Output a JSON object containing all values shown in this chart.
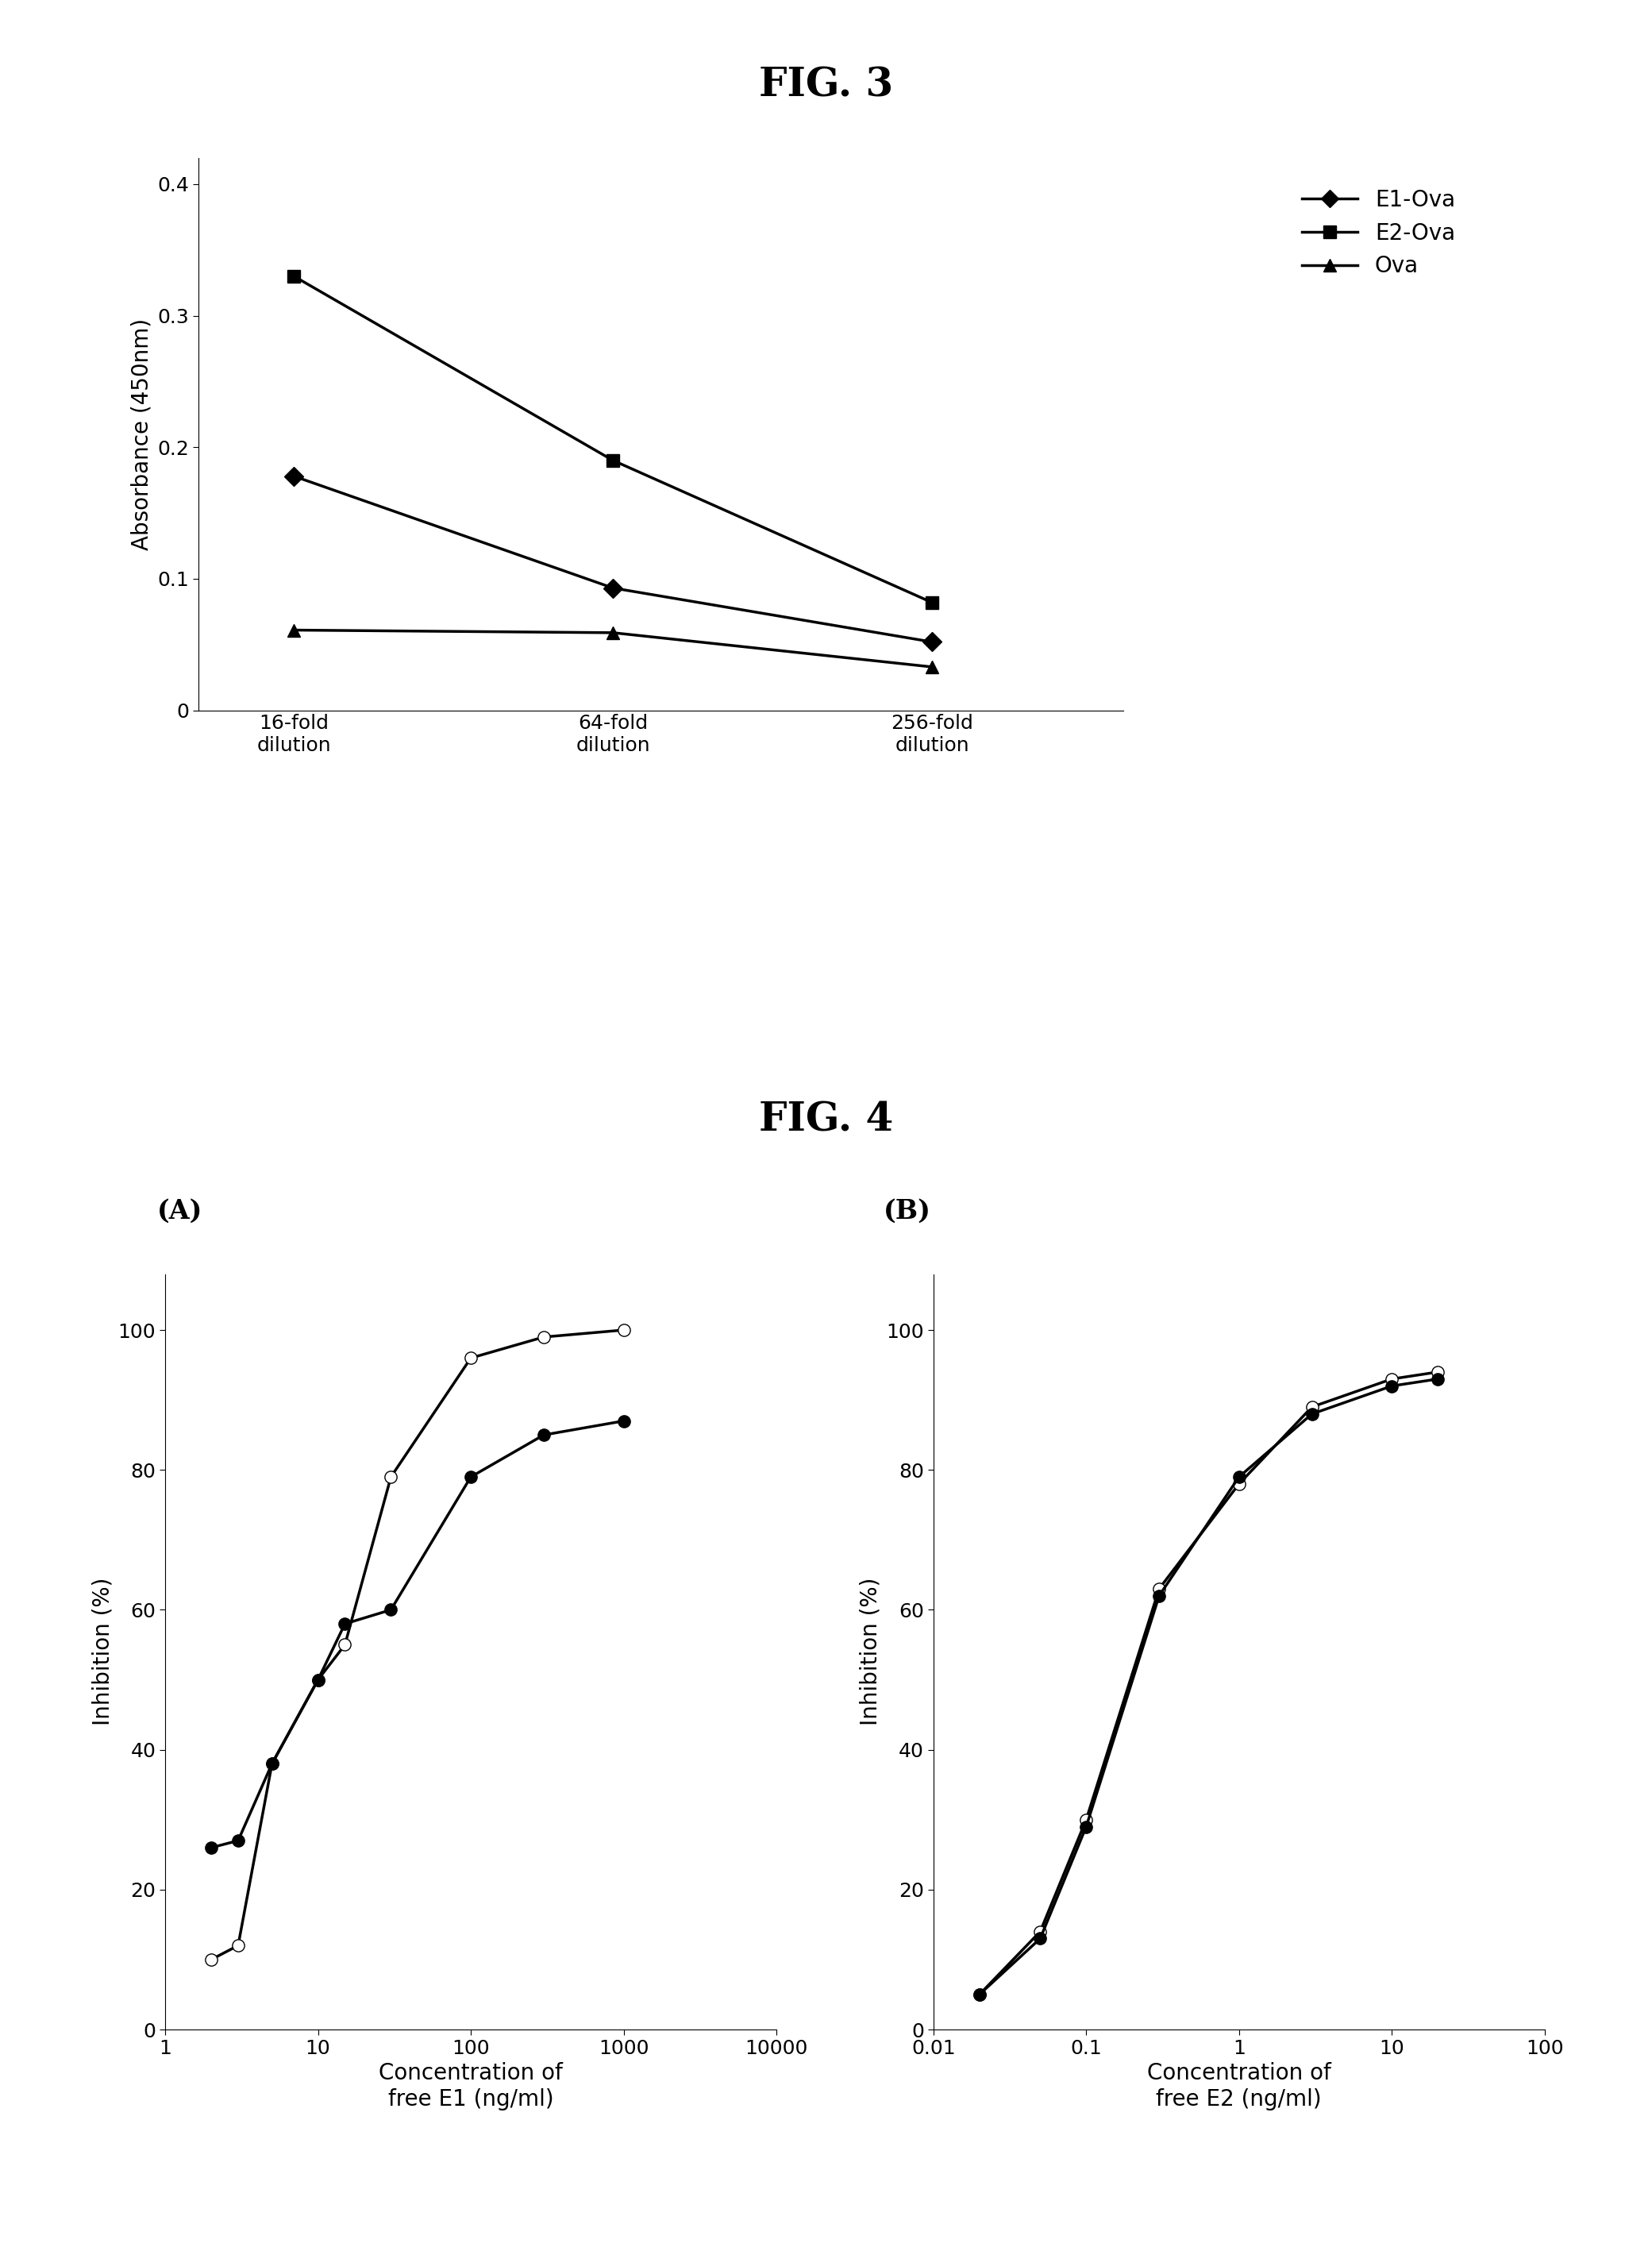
{
  "fig3_title": "FIG. 3",
  "fig3_xlabel_ticks": [
    "16-fold\ndilution",
    "64-fold\ndilution",
    "256-fold\ndilution"
  ],
  "fig3_ylabel": "Absorbance (450nm)",
  "fig3_ylim": [
    0,
    0.42
  ],
  "fig3_yticks": [
    0,
    0.1,
    0.2,
    0.3,
    0.4
  ],
  "fig3_series": [
    {
      "label": "E1-Ova",
      "values": [
        0.178,
        0.093,
        0.052
      ],
      "marker": "D",
      "filled": true
    },
    {
      "label": "E2-Ova",
      "values": [
        0.33,
        0.19,
        0.082
      ],
      "marker": "s",
      "filled": true
    },
    {
      "label": "Ova",
      "values": [
        0.061,
        0.059,
        0.033
      ],
      "marker": "^",
      "filled": true
    }
  ],
  "fig4_title": "FIG. 4",
  "fig4A_label": "(A)",
  "fig4B_label": "(B)",
  "fig4A_series": [
    {
      "label": "open",
      "x": [
        2,
        3,
        5,
        10,
        15,
        30,
        100,
        300,
        1000
      ],
      "y": [
        10,
        12,
        38,
        50,
        55,
        79,
        96,
        99,
        100
      ],
      "marker": "o",
      "filled": false
    },
    {
      "label": "filled",
      "x": [
        2,
        3,
        5,
        10,
        15,
        30,
        100,
        300,
        1000
      ],
      "y": [
        26,
        27,
        38,
        50,
        58,
        60,
        79,
        85,
        87
      ],
      "marker": "o",
      "filled": true
    }
  ],
  "fig4A_xlabel": "Concentration of\nfree E1 (ng/ml)",
  "fig4A_ylabel": "Inhibition (%)",
  "fig4A_xlim": [
    1,
    10000
  ],
  "fig4A_ylim": [
    0,
    108
  ],
  "fig4A_yticks": [
    0,
    20,
    40,
    60,
    80,
    100
  ],
  "fig4B_series": [
    {
      "label": "open",
      "x": [
        0.02,
        0.05,
        0.1,
        0.3,
        1,
        3,
        10,
        20
      ],
      "y": [
        5,
        14,
        30,
        63,
        78,
        89,
        93,
        94
      ],
      "marker": "o",
      "filled": false
    },
    {
      "label": "filled",
      "x": [
        0.02,
        0.05,
        0.1,
        0.3,
        1,
        3,
        10,
        20
      ],
      "y": [
        5,
        13,
        29,
        62,
        79,
        88,
        92,
        93
      ],
      "marker": "o",
      "filled": true
    }
  ],
  "fig4B_xlabel": "Concentration of\nfree E2 (ng/ml)",
  "fig4B_ylabel": "Inhibition (%)",
  "fig4B_xlim": [
    0.01,
    100
  ],
  "fig4B_ylim": [
    0,
    108
  ],
  "fig4B_yticks": [
    0,
    20,
    40,
    60,
    80,
    100
  ],
  "bg_color": "#ffffff",
  "line_color": "#000000",
  "fontsize_title": 36,
  "fontsize_label": 20,
  "fontsize_tick": 18,
  "fontsize_legend": 20,
  "fontsize_sublabel": 24
}
